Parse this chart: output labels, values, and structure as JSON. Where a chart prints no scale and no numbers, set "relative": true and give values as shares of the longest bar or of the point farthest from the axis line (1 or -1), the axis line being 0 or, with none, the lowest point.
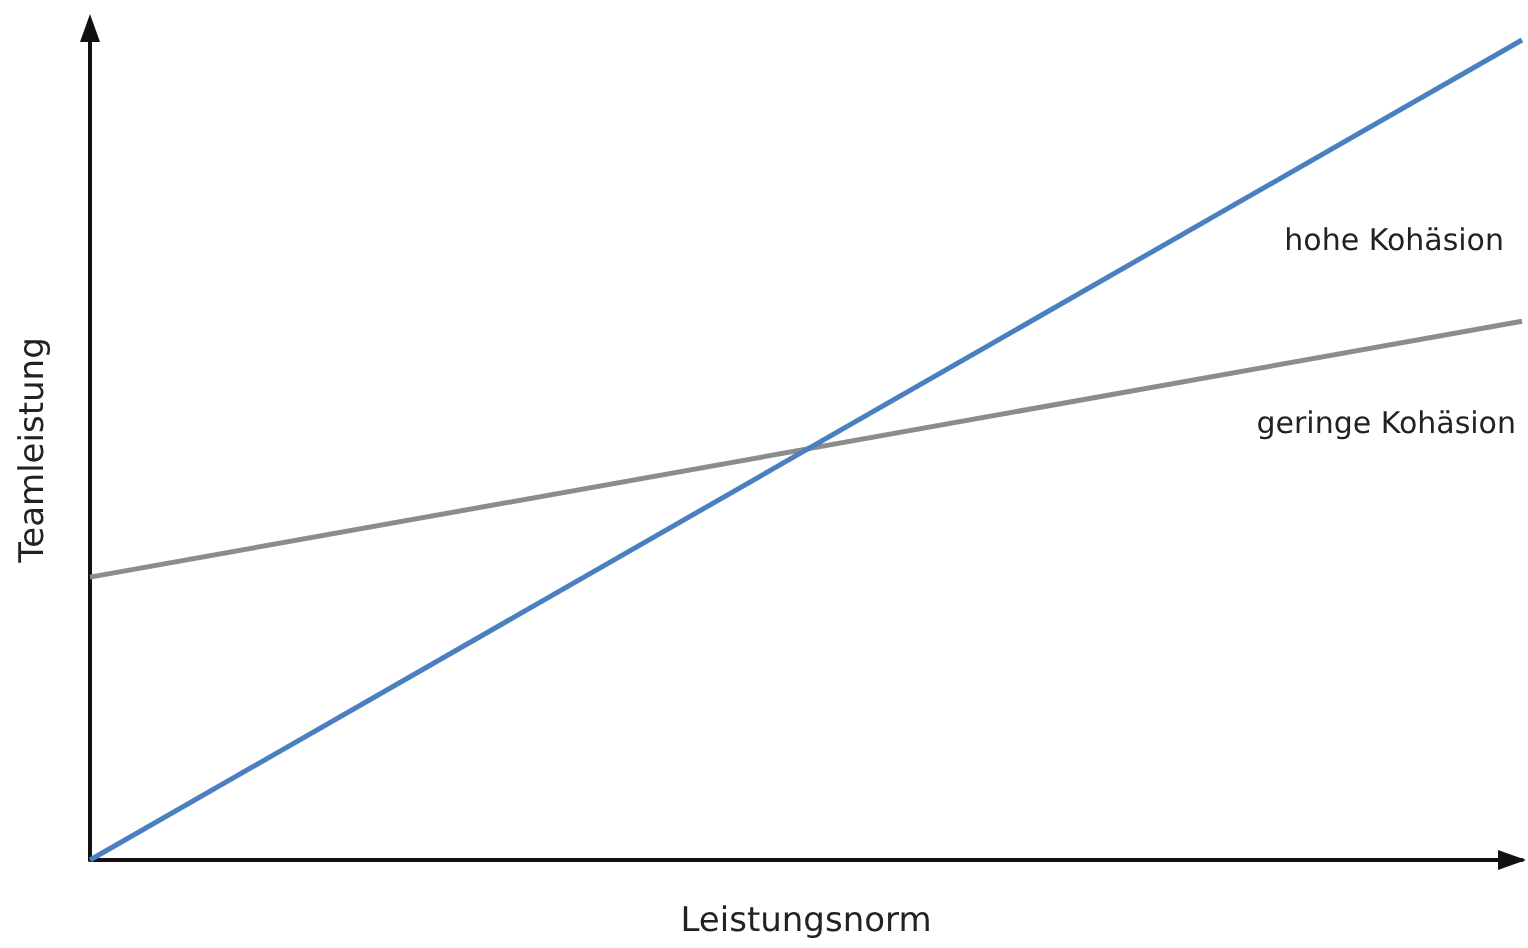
{
  "chart_data": {
    "type": "line",
    "relative": true,
    "xlabel": "Leistungsnorm",
    "ylabel": "Teamleistung",
    "categories": [
      null,
      null
    ],
    "series": [
      {
        "name": "hohe Kohäsion",
        "color": "#4a80c0",
        "values": [
          0,
          1
        ]
      },
      {
        "name": "geringe Kohäsion",
        "color": "#8c8c8c",
        "values": [
          0.345,
          0.657
        ]
      }
    ],
    "grid": false,
    "legend": false,
    "marker": "none",
    "line_style": "solid"
  }
}
